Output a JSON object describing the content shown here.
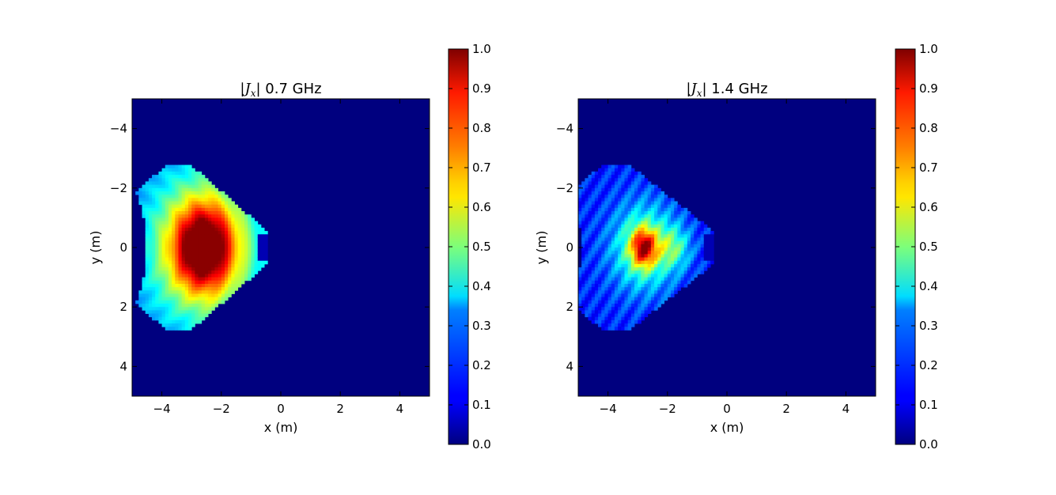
{
  "chart_data": [
    {
      "type": "heatmap",
      "title_symbol": "|J",
      "title_subscript": "x",
      "title_suffix": "| 0.7 GHz",
      "xlabel": "x (m)",
      "ylabel": "y (m)",
      "xlim": [
        -5,
        5
      ],
      "ylim": [
        -5,
        5
      ],
      "y_inverted": true,
      "xticks": [
        -4,
        -2,
        0,
        2,
        4
      ],
      "xtick_labels": [
        "−4",
        "−2",
        "0",
        "2",
        "4"
      ],
      "yticks": [
        -4,
        -2,
        0,
        2,
        4
      ],
      "ytick_labels": [
        "−4",
        "−2",
        "0",
        "2",
        "4"
      ],
      "colormap": "jet",
      "colorbar": {
        "range": [
          0.0,
          1.0
        ],
        "ticks": [
          0.0,
          0.1,
          0.2,
          0.3,
          0.4,
          0.5,
          0.6,
          0.7,
          0.8,
          0.9,
          1.0
        ],
        "tick_labels": [
          "0.0",
          "0.1",
          "0.2",
          "0.3",
          "0.4",
          "0.5",
          "0.6",
          "0.7",
          "0.8",
          "0.9",
          "1.0"
        ]
      },
      "field": {
        "peak_x": -2.6,
        "peak_y": 0.0,
        "core_sigma_x": 0.55,
        "core_sigma_y": 0.85,
        "region_back_x": -4.5,
        "region_front_x": -0.4,
        "region_half_height": 2.8
      }
    },
    {
      "type": "heatmap",
      "title_symbol": "|J",
      "title_subscript": "x",
      "title_suffix": "| 1.4 GHz",
      "xlabel": "x (m)",
      "ylabel": "y (m)",
      "xlim": [
        -5,
        5
      ],
      "ylim": [
        -5,
        5
      ],
      "y_inverted": true,
      "xticks": [
        -4,
        -2,
        0,
        2,
        4
      ],
      "xtick_labels": [
        "−4",
        "−2",
        "0",
        "2",
        "4"
      ],
      "yticks": [
        -4,
        -2,
        0,
        2,
        4
      ],
      "ytick_labels": [
        "−4",
        "−2",
        "0",
        "2",
        "4"
      ],
      "colormap": "jet",
      "colorbar": {
        "range": [
          0.0,
          1.0
        ],
        "ticks": [
          0.0,
          0.1,
          0.2,
          0.3,
          0.4,
          0.5,
          0.6,
          0.7,
          0.8,
          0.9,
          1.0
        ],
        "tick_labels": [
          "0.0",
          "0.1",
          "0.2",
          "0.3",
          "0.4",
          "0.5",
          "0.6",
          "0.7",
          "0.8",
          "0.9",
          "1.0"
        ]
      },
      "field": {
        "peak_x": -2.8,
        "peak_y": 0.0,
        "core_sigma_x": 0.3,
        "core_sigma_y": 0.45,
        "region_back_x": -4.9,
        "region_front_x": -0.4,
        "region_half_height": 2.8
      }
    }
  ]
}
